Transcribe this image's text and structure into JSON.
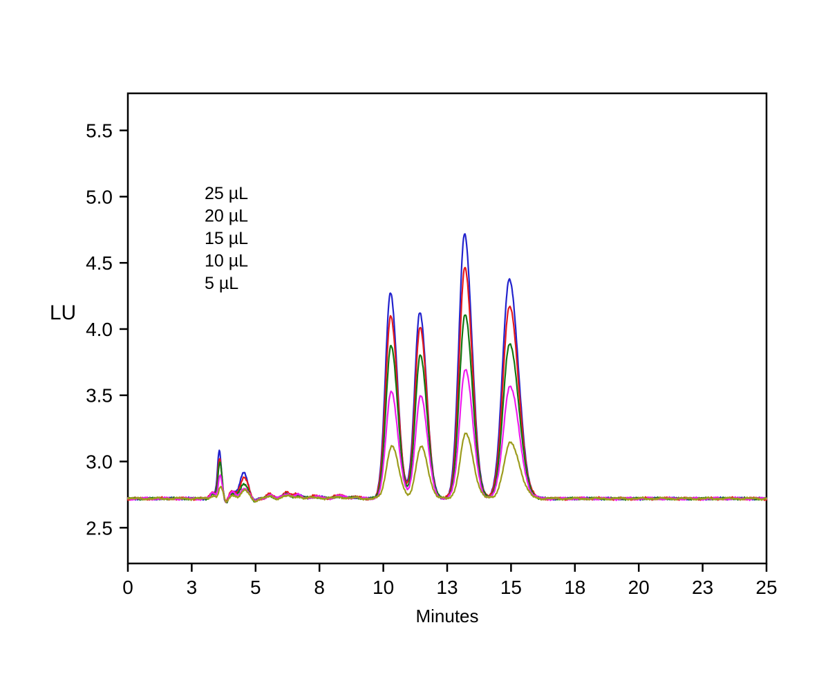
{
  "figure": {
    "background": "#ffffff",
    "frame_color": "#000000"
  },
  "chart_data": {
    "type": "line",
    "title": "",
    "xlabel": "Minutes",
    "ylabel": "LU",
    "xlim": [
      0,
      25
    ],
    "ylim": [
      2.23,
      5.78
    ],
    "grid": false,
    "legend_position": "upper-left-inside",
    "x_ticks": [
      {
        "pos": 0.0,
        "label": "0"
      },
      {
        "pos": 2.5,
        "label": "3"
      },
      {
        "pos": 5.0,
        "label": "5"
      },
      {
        "pos": 7.5,
        "label": "8"
      },
      {
        "pos": 10.0,
        "label": "10"
      },
      {
        "pos": 12.5,
        "label": "13"
      },
      {
        "pos": 15.0,
        "label": "15"
      },
      {
        "pos": 17.5,
        "label": "18"
      },
      {
        "pos": 20.0,
        "label": "20"
      },
      {
        "pos": 22.5,
        "label": "23"
      },
      {
        "pos": 25.0,
        "label": "25"
      }
    ],
    "y_ticks": [
      {
        "pos": 2.5,
        "label": "2.5"
      },
      {
        "pos": 3.0,
        "label": "3.0"
      },
      {
        "pos": 3.5,
        "label": "3.5"
      },
      {
        "pos": 4.0,
        "label": "4.0"
      },
      {
        "pos": 4.5,
        "label": "4.5"
      },
      {
        "pos": 5.0,
        "label": "5.0"
      },
      {
        "pos": 5.5,
        "label": "5.5"
      }
    ],
    "baseline_LU": 2.72,
    "peak_sigma_min": [
      0.07,
      0.14,
      0.2,
      0.2,
      0.22,
      0.26
    ],
    "peak_tail_factor": [
      1.2,
      1.2,
      1.3,
      1.3,
      1.3,
      1.35
    ],
    "shared_features": [
      {
        "t": 3.33,
        "dh": 0.045,
        "sigma": 0.1
      },
      {
        "t": 3.85,
        "dh": -0.035,
        "sigma": 0.07
      },
      {
        "t": 4.1,
        "dh": 0.05,
        "sigma": 0.13
      },
      {
        "t": 4.95,
        "dh": -0.022,
        "sigma": 0.1
      },
      {
        "t": 5.55,
        "dh": 0.03,
        "sigma": 0.12
      },
      {
        "t": 6.2,
        "dh": 0.042,
        "sigma": 0.15
      },
      {
        "t": 6.65,
        "dh": 0.028,
        "sigma": 0.15
      },
      {
        "t": 7.35,
        "dh": 0.015,
        "sigma": 0.25
      },
      {
        "t": 8.3,
        "dh": 0.022,
        "sigma": 0.2
      },
      {
        "t": 8.9,
        "dh": 0.012,
        "sigma": 0.15
      }
    ],
    "series": [
      {
        "name": "25 µL",
        "color": "#2222cd",
        "t_offset": -0.02,
        "noise_amp": 0.008,
        "seed": 1,
        "features_scale": 0.9,
        "peaks": [
          {
            "t": 3.6,
            "apex": 3.08
          },
          {
            "t": 4.55,
            "apex": 2.92
          },
          {
            "t": 10.3,
            "apex": 4.27
          },
          {
            "t": 11.45,
            "apex": 4.13
          },
          {
            "t": 13.2,
            "apex": 4.72
          },
          {
            "t": 14.95,
            "apex": 4.38
          }
        ]
      },
      {
        "name": "20 µL",
        "color": "#e51a1a",
        "t_offset": -0.01,
        "noise_amp": 0.01,
        "seed": 2,
        "features_scale": 1.15,
        "peaks": [
          {
            "t": 3.6,
            "apex": 3.02
          },
          {
            "t": 4.55,
            "apex": 2.88
          },
          {
            "t": 10.3,
            "apex": 4.1
          },
          {
            "t": 11.45,
            "apex": 4.01
          },
          {
            "t": 13.2,
            "apex": 4.46
          },
          {
            "t": 14.95,
            "apex": 4.17
          }
        ]
      },
      {
        "name": "15 µL",
        "color": "#127812",
        "t_offset": 0.0,
        "noise_amp": 0.008,
        "seed": 3,
        "features_scale": 0.75,
        "peaks": [
          {
            "t": 3.6,
            "apex": 2.99
          },
          {
            "t": 4.55,
            "apex": 2.83
          },
          {
            "t": 10.3,
            "apex": 3.87
          },
          {
            "t": 11.45,
            "apex": 3.8
          },
          {
            "t": 13.2,
            "apex": 4.11
          },
          {
            "t": 14.95,
            "apex": 3.89
          }
        ]
      },
      {
        "name": "10 µL",
        "color": "#ee1cee",
        "t_offset": 0.01,
        "noise_amp": 0.01,
        "seed": 4,
        "features_scale": 0.9,
        "peaks": [
          {
            "t": 3.6,
            "apex": 2.9
          },
          {
            "t": 4.55,
            "apex": 2.8
          },
          {
            "t": 10.3,
            "apex": 3.53
          },
          {
            "t": 11.45,
            "apex": 3.5
          },
          {
            "t": 13.2,
            "apex": 3.7
          },
          {
            "t": 14.95,
            "apex": 3.57
          }
        ]
      },
      {
        "name": "5 µL",
        "color": "#9c9c1e",
        "t_offset": 0.03,
        "noise_amp": 0.009,
        "seed": 5,
        "features_scale": 0.5,
        "peaks": [
          {
            "t": 3.6,
            "apex": 2.81
          },
          {
            "t": 4.55,
            "apex": 2.78
          },
          {
            "t": 10.3,
            "apex": 3.12
          },
          {
            "t": 11.45,
            "apex": 3.11
          },
          {
            "t": 13.2,
            "apex": 3.21
          },
          {
            "t": 14.95,
            "apex": 3.14
          }
        ]
      }
    ]
  },
  "legend": {
    "items": [
      {
        "label": "25 µL",
        "color": "#2222cd"
      },
      {
        "label": "20 µL",
        "color": "#e51a1a"
      },
      {
        "label": "15 µL",
        "color": "#127812"
      },
      {
        "label": "10 µL",
        "color": "#ee1cee"
      },
      {
        "label": "5 µL",
        "color": "#9c9c1e"
      }
    ]
  }
}
